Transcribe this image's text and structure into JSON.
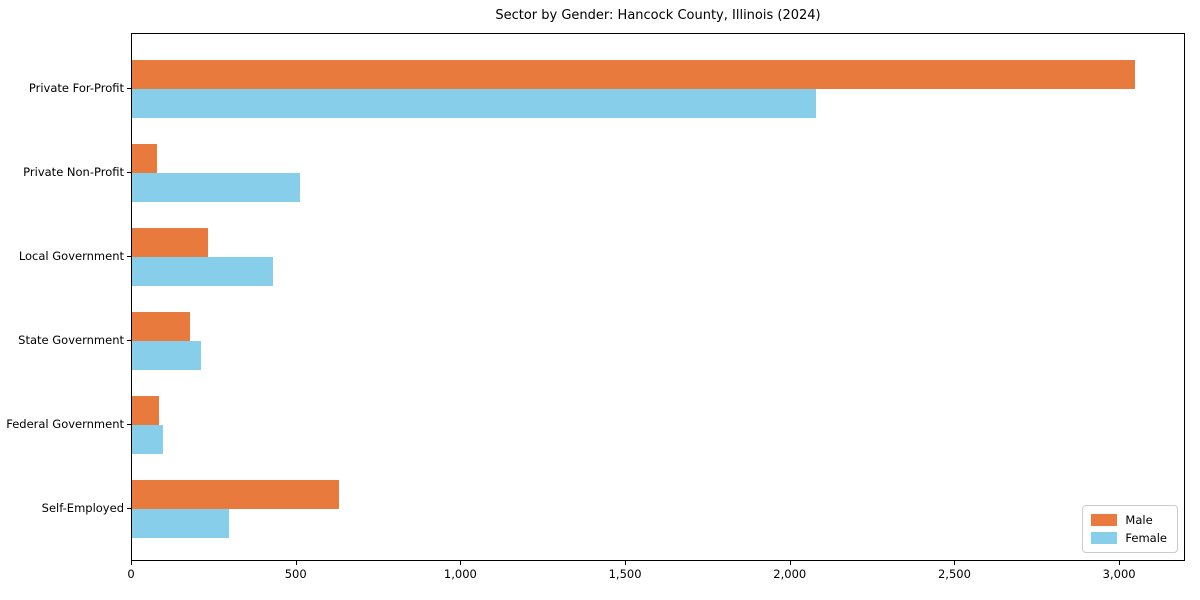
{
  "title": "Sector by Gender: Hancock County, Illinois (2024)",
  "chart_data": {
    "type": "bar",
    "orientation": "horizontal",
    "title": "Sector by Gender: Hancock County, Illinois (2024)",
    "categories": [
      "Private For-Profit",
      "Private Non-Profit",
      "Local Government",
      "State Government",
      "Federal Government",
      "Self-Employed"
    ],
    "series": [
      {
        "name": "Male",
        "color": "#e87a3e",
        "values": [
          3050,
          75,
          230,
          175,
          82,
          630
        ]
      },
      {
        "name": "Female",
        "color": "#87ceeb",
        "values": [
          2080,
          510,
          430,
          210,
          95,
          295
        ]
      }
    ],
    "xlabel": "",
    "ylabel": "",
    "xlim": [
      0,
      3200
    ],
    "x_ticks": {
      "values": [
        0,
        500,
        1000,
        1500,
        2000,
        2500,
        3000
      ],
      "labels": [
        "0",
        "500",
        "1,000",
        "1,500",
        "2,000",
        "2,500",
        "3,000"
      ]
    },
    "grid": false,
    "legend": {
      "position": "lower right"
    }
  }
}
